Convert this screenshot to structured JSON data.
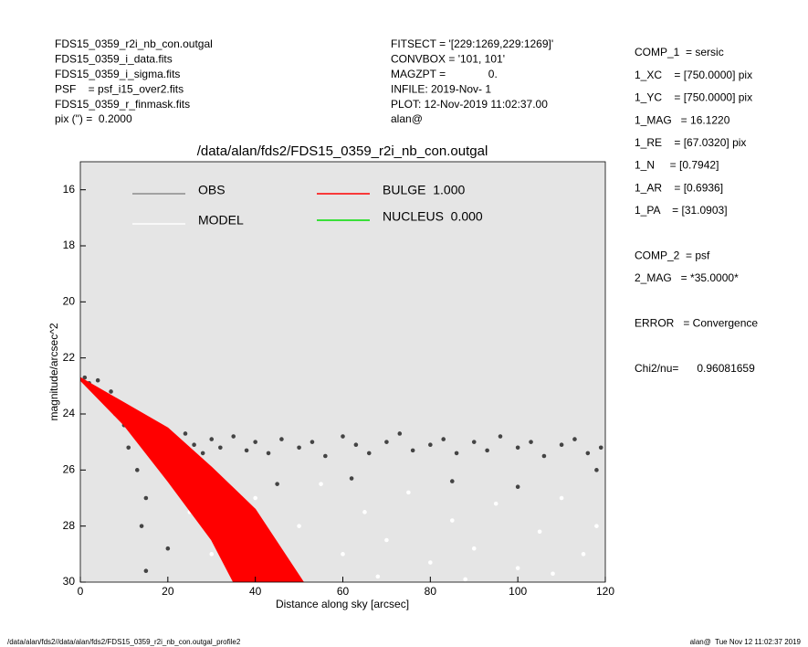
{
  "header": {
    "left": [
      "FDS15_0359_r2i_nb_con.outgal",
      "FDS15_0359_i_data.fits",
      "FDS15_0359_i_sigma.fits",
      "PSF    = psf_i15_over2.fits",
      "FDS15_0359_r_finmask.fits",
      "pix (\") =  0.2000"
    ],
    "middle": [
      "FITSECT = '[229:1269,229:1269]'",
      "CONVBOX = '101, 101'",
      "MAGZPT =              0.",
      "INFILE: 2019-Nov- 1",
      "PLOT: 12-Nov-2019 11:02:37.00",
      "alan@"
    ],
    "right": [
      "COMP_1  = sersic",
      "1_XC    = [750.0000] pix",
      "1_YC    = [750.0000] pix",
      "1_MAG   = 16.1220",
      "1_RE    = [67.0320] pix",
      "1_N     = [0.7942]",
      "1_AR    = [0.6936]",
      "1_PA    = [31.0903]",
      "",
      "COMP_2  = psf",
      "2_MAG   = *35.0000*",
      "",
      "ERROR   = Convergence",
      "",
      "Chi2/nu=      0.96081659"
    ]
  },
  "footer": {
    "left": "/data/alan/fds2//data/alan/fds2/FDS15_0359_r2i_nb_con.outgal_profile2",
    "right": "alan@  Tue Nov 12 11:02:37 2019"
  },
  "chart_data": {
    "type": "scatter",
    "title": "/data/alan/fds2/FDS15_0359_r2i_nb_con.outgal",
    "xlabel": "Distance along sky [arcsec]",
    "ylabel": "magnitude/arcsec^2",
    "xlim": [
      0,
      120
    ],
    "ylim": [
      30,
      15
    ],
    "xticks": [
      0,
      20,
      40,
      60,
      80,
      100,
      120
    ],
    "yticks": [
      16,
      18,
      20,
      22,
      24,
      26,
      28,
      30
    ],
    "background": "#e5e5e5",
    "series": [
      {
        "name": "OBS",
        "color": "#8c8c8c",
        "marker_color": "#444444",
        "x": [
          1,
          2,
          3,
          4,
          5,
          6,
          7,
          8,
          9,
          10,
          11,
          12,
          13,
          14,
          15,
          16,
          18,
          20,
          22,
          24,
          26,
          28,
          30,
          32,
          35,
          38,
          40,
          43,
          46,
          50,
          53,
          56,
          60,
          63,
          66,
          70,
          73,
          76,
          80,
          83,
          86,
          90,
          93,
          96,
          100,
          103,
          106,
          110,
          113,
          116,
          119,
          14,
          20,
          15,
          30,
          45,
          62,
          85,
          100,
          118
        ],
        "values": [
          22.7,
          22.9,
          23.1,
          22.8,
          23.4,
          23.6,
          23.2,
          24.0,
          23.6,
          24.4,
          25.2,
          24.1,
          26.0,
          24.6,
          27.0,
          24.8,
          25.0,
          24.9,
          25.3,
          24.7,
          25.1,
          25.4,
          24.9,
          25.2,
          24.8,
          25.3,
          25.0,
          25.4,
          24.9,
          25.2,
          25.0,
          25.5,
          24.8,
          25.1,
          25.4,
          25.0,
          24.7,
          25.3,
          25.1,
          24.9,
          25.4,
          25.0,
          25.3,
          24.8,
          25.2,
          25.0,
          25.5,
          25.1,
          24.9,
          25.4,
          25.2,
          28.0,
          28.8,
          29.6,
          27.0,
          26.5,
          26.3,
          26.4,
          26.6,
          26.0
        ]
      },
      {
        "name": "MODEL",
        "color": "#ffffff",
        "marker_color": "#ffffff",
        "x": [
          40,
          50,
          55,
          60,
          65,
          70,
          75,
          80,
          85,
          90,
          95,
          100,
          105,
          110,
          115,
          118,
          45,
          68,
          88,
          108,
          25,
          30
        ],
        "values": [
          27.0,
          28.0,
          26.5,
          29.0,
          27.5,
          28.5,
          26.8,
          29.3,
          27.8,
          28.8,
          27.2,
          29.5,
          28.2,
          27.0,
          29.0,
          28.0,
          29.5,
          29.8,
          29.9,
          29.7,
          27.5,
          29.0
        ]
      },
      {
        "name": "BULGE  1.000",
        "color": "#ff0000",
        "x": [
          0,
          10,
          20,
          30,
          40,
          51
        ],
        "values": [
          22.7,
          23.6,
          24.5,
          25.9,
          27.4,
          30
        ],
        "x2": [
          0,
          10,
          20,
          30,
          35
        ],
        "values2": [
          22.8,
          24.4,
          26.4,
          28.5,
          30
        ]
      },
      {
        "name": "NUCLEUS  0.000",
        "color": "#00dd00",
        "x": [],
        "values": []
      }
    ]
  }
}
